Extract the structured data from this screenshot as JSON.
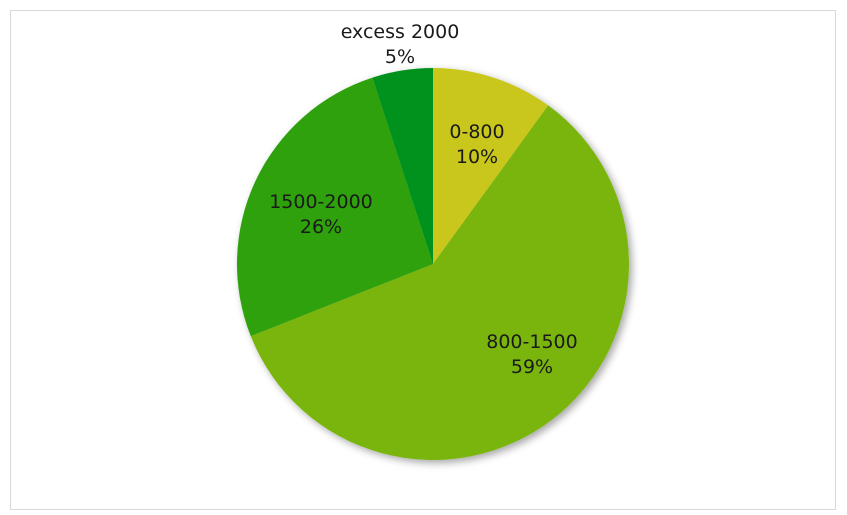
{
  "chart_data": {
    "type": "pie",
    "title": "",
    "slices": [
      {
        "label": "0-800",
        "percent_label": "10%",
        "value": 10,
        "color": "#c9c71f"
      },
      {
        "label": "800-1500",
        "percent_label": "59%",
        "value": 59,
        "color": "#7ab511"
      },
      {
        "label": "1500-2000",
        "percent_label": "26%",
        "value": 26,
        "color": "#2fa10f"
      },
      {
        "label": "excess 2000",
        "percent_label": "5%",
        "value": 5,
        "color": "#03921f"
      }
    ],
    "start_angle_deg": 0,
    "direction": "clockwise",
    "legend": "none"
  }
}
